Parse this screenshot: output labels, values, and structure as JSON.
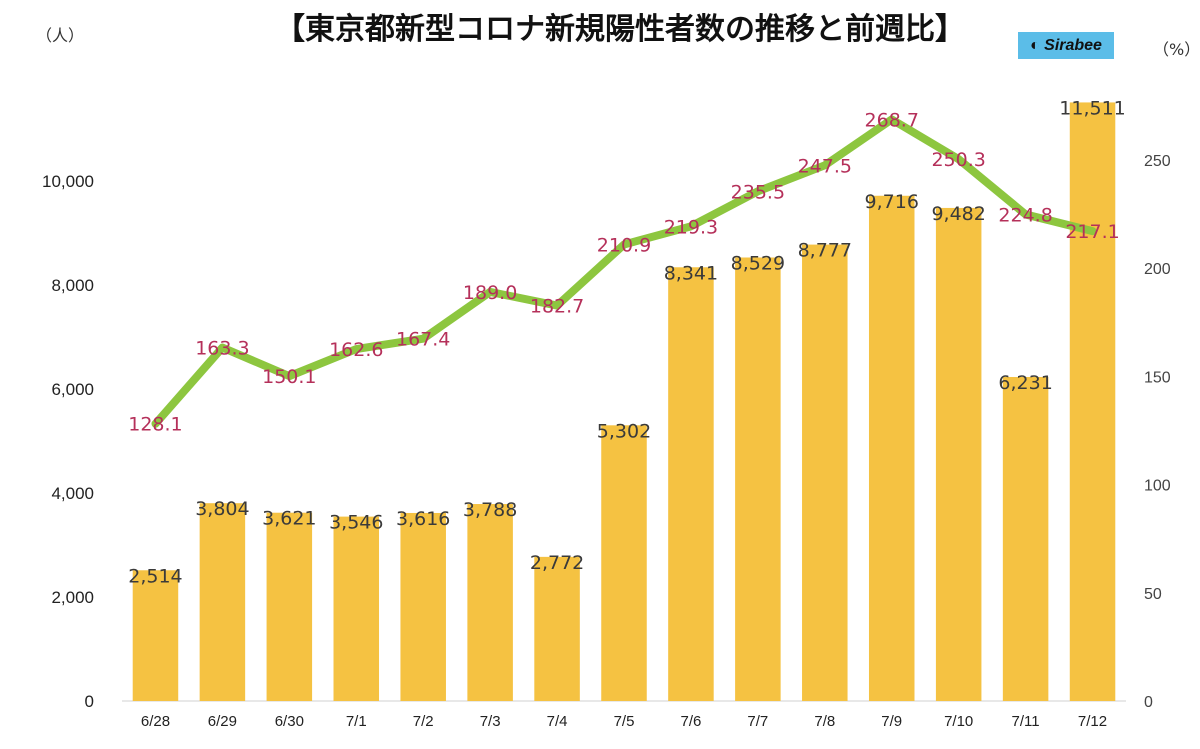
{
  "chart_data": {
    "type": "bar+line",
    "title": "【東京都新型コロナ新規陽性者数の推移と前週比】",
    "left_unit": "（人）",
    "right_unit": "（%）",
    "logo": "Sirabee",
    "categories": [
      "6/28",
      "6/29",
      "6/30",
      "7/1",
      "7/2",
      "7/3",
      "7/4",
      "7/5",
      "7/6",
      "7/7",
      "7/8",
      "7/9",
      "7/10",
      "7/11",
      "7/12"
    ],
    "series": [
      {
        "name": "新規陽性者数",
        "type": "bar",
        "axis": "left",
        "color": "#f5c242",
        "values": [
          2514,
          3804,
          3621,
          3546,
          3616,
          3788,
          2772,
          5302,
          8341,
          8529,
          8777,
          9716,
          9482,
          6231,
          11511
        ],
        "labels": [
          "2,514",
          "3,804",
          "3,621",
          "3,546",
          "3,616",
          "3,788",
          "2,772",
          "5,302",
          "8,341",
          "8,529",
          "8,777",
          "9,716",
          "9,482",
          "6,231",
          "11,511"
        ]
      },
      {
        "name": "前週比",
        "type": "line",
        "axis": "right",
        "color": "#8dc63f",
        "label_color": "#b5305a",
        "values": [
          128.1,
          163.3,
          150.1,
          162.6,
          167.4,
          189.0,
          182.7,
          210.9,
          219.3,
          235.5,
          247.5,
          268.7,
          250.3,
          224.8,
          217.1
        ],
        "labels": [
          "128.1",
          "163.3",
          "150.1",
          "162.6",
          "167.4",
          "189.0",
          "182.7",
          "210.9",
          "219.3",
          "235.5",
          "247.5",
          "268.7",
          "250.3",
          "224.8",
          "217.1"
        ]
      }
    ],
    "left_axis": {
      "ylim": [
        0,
        12000
      ],
      "ticks": [
        0,
        2000,
        4000,
        6000,
        8000,
        10000
      ],
      "tick_labels": [
        "0",
        "2,000",
        "4,000",
        "6,000",
        "8,000",
        "10,000"
      ]
    },
    "right_axis": {
      "ylim": [
        0,
        288.3
      ],
      "ticks": [
        0,
        50,
        100,
        150,
        200,
        250
      ],
      "tick_labels": [
        "0",
        "50",
        "100",
        "150",
        "200",
        "250"
      ]
    },
    "grid": false,
    "legend": "none"
  }
}
